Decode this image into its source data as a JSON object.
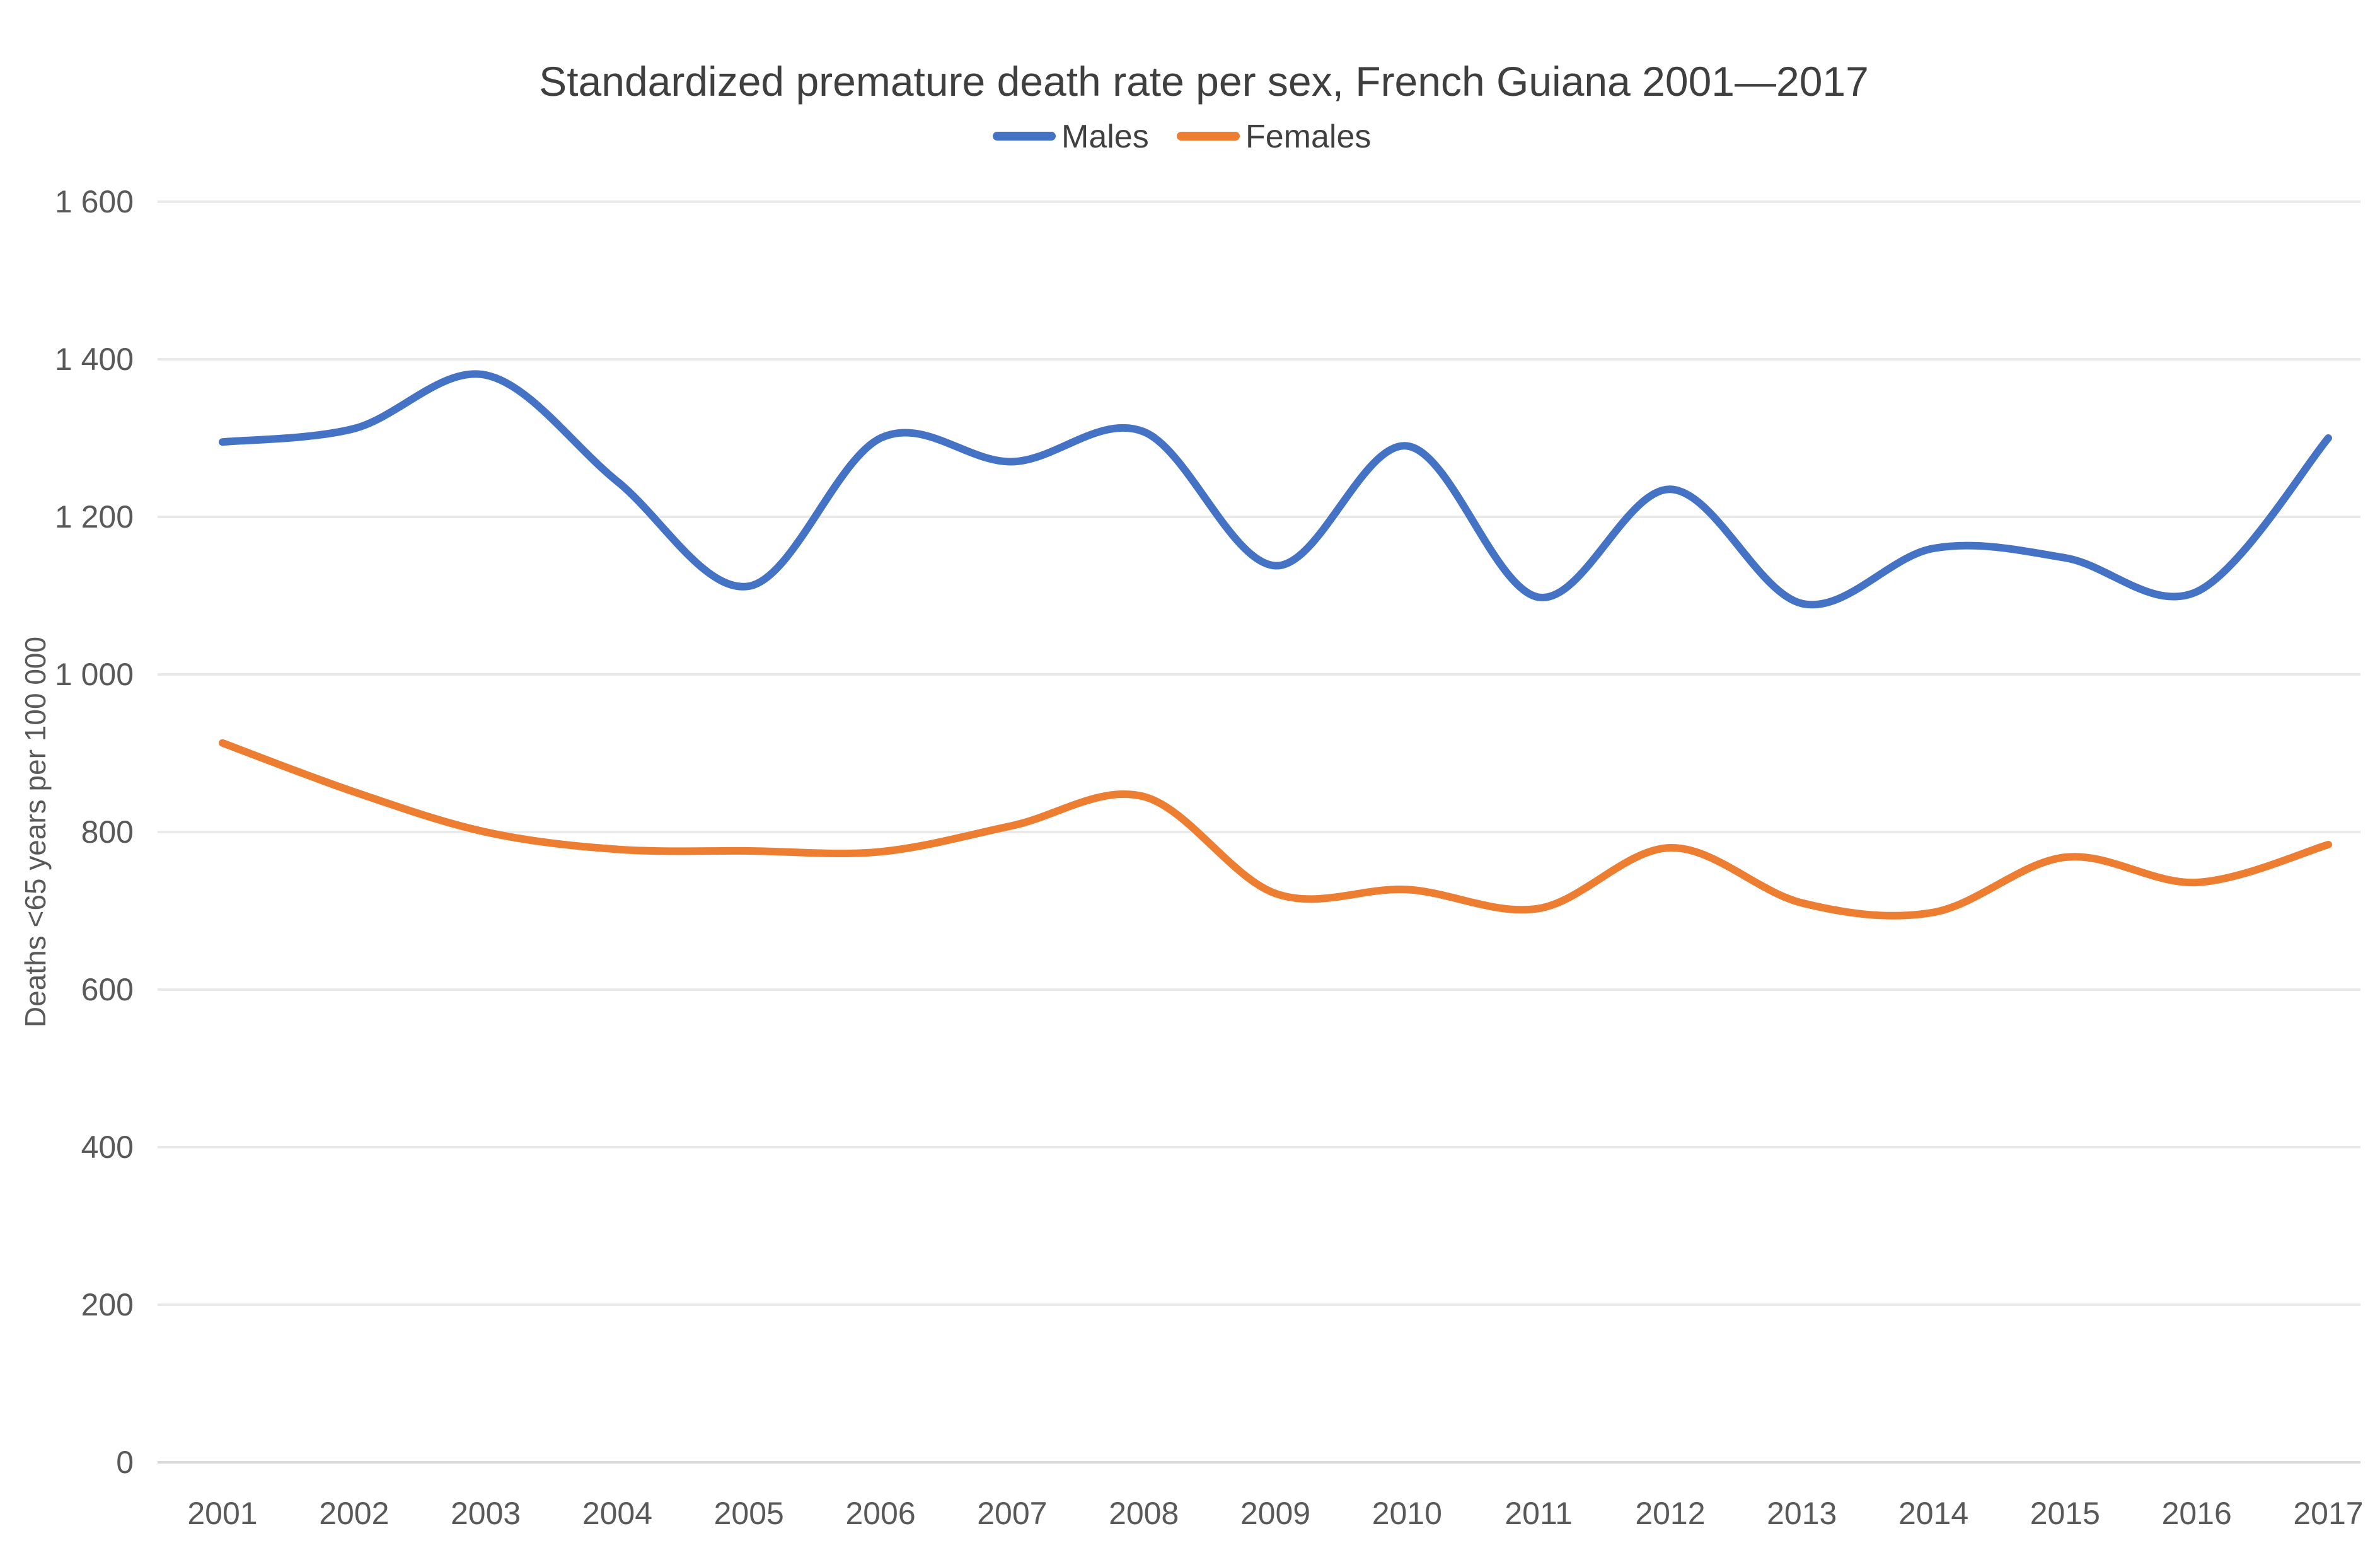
{
  "title": "Standardized premature death rate per sex, French Guiana 2001—2017",
  "y_axis": {
    "title": "Deaths <65 years per 100 000",
    "ticks": [
      {
        "value": 0,
        "label": "0"
      },
      {
        "value": 200,
        "label": "200"
      },
      {
        "value": 400,
        "label": "400"
      },
      {
        "value": 600,
        "label": "600"
      },
      {
        "value": 800,
        "label": "800"
      },
      {
        "value": 1000,
        "label": "1 000"
      },
      {
        "value": 1200,
        "label": "1 200"
      },
      {
        "value": 1400,
        "label": "1 400"
      },
      {
        "value": 1600,
        "label": "1 600"
      }
    ]
  },
  "legend": {
    "males_label": "Males",
    "females_label": "Females"
  },
  "chart_data": {
    "type": "line",
    "title": "Standardized premature death rate per sex, French Guiana 2001—2017",
    "xlabel": "",
    "ylabel": "Deaths <65 years per 100 000",
    "ylim": [
      0,
      1600
    ],
    "y_tick_step": 200,
    "grid": true,
    "legend_position": "top-center",
    "line_style": "smooth",
    "categories": [
      2001,
      2002,
      2003,
      2004,
      2005,
      2006,
      2007,
      2008,
      2009,
      2010,
      2011,
      2012,
      2013,
      2014,
      2015,
      2016,
      2017
    ],
    "series": [
      {
        "name": "Males",
        "color": "#4472C4",
        "values": [
          1295,
          1312,
          1380,
          1245,
          1112,
          1300,
          1270,
          1308,
          1138,
          1290,
          1098,
          1235,
          1090,
          1160,
          1148,
          1105,
          1300
        ]
      },
      {
        "name": "Females",
        "color": "#ED7D31",
        "values": [
          913,
          851,
          800,
          778,
          776,
          775,
          808,
          845,
          722,
          727,
          703,
          780,
          710,
          698,
          768,
          736,
          784
        ]
      }
    ]
  }
}
